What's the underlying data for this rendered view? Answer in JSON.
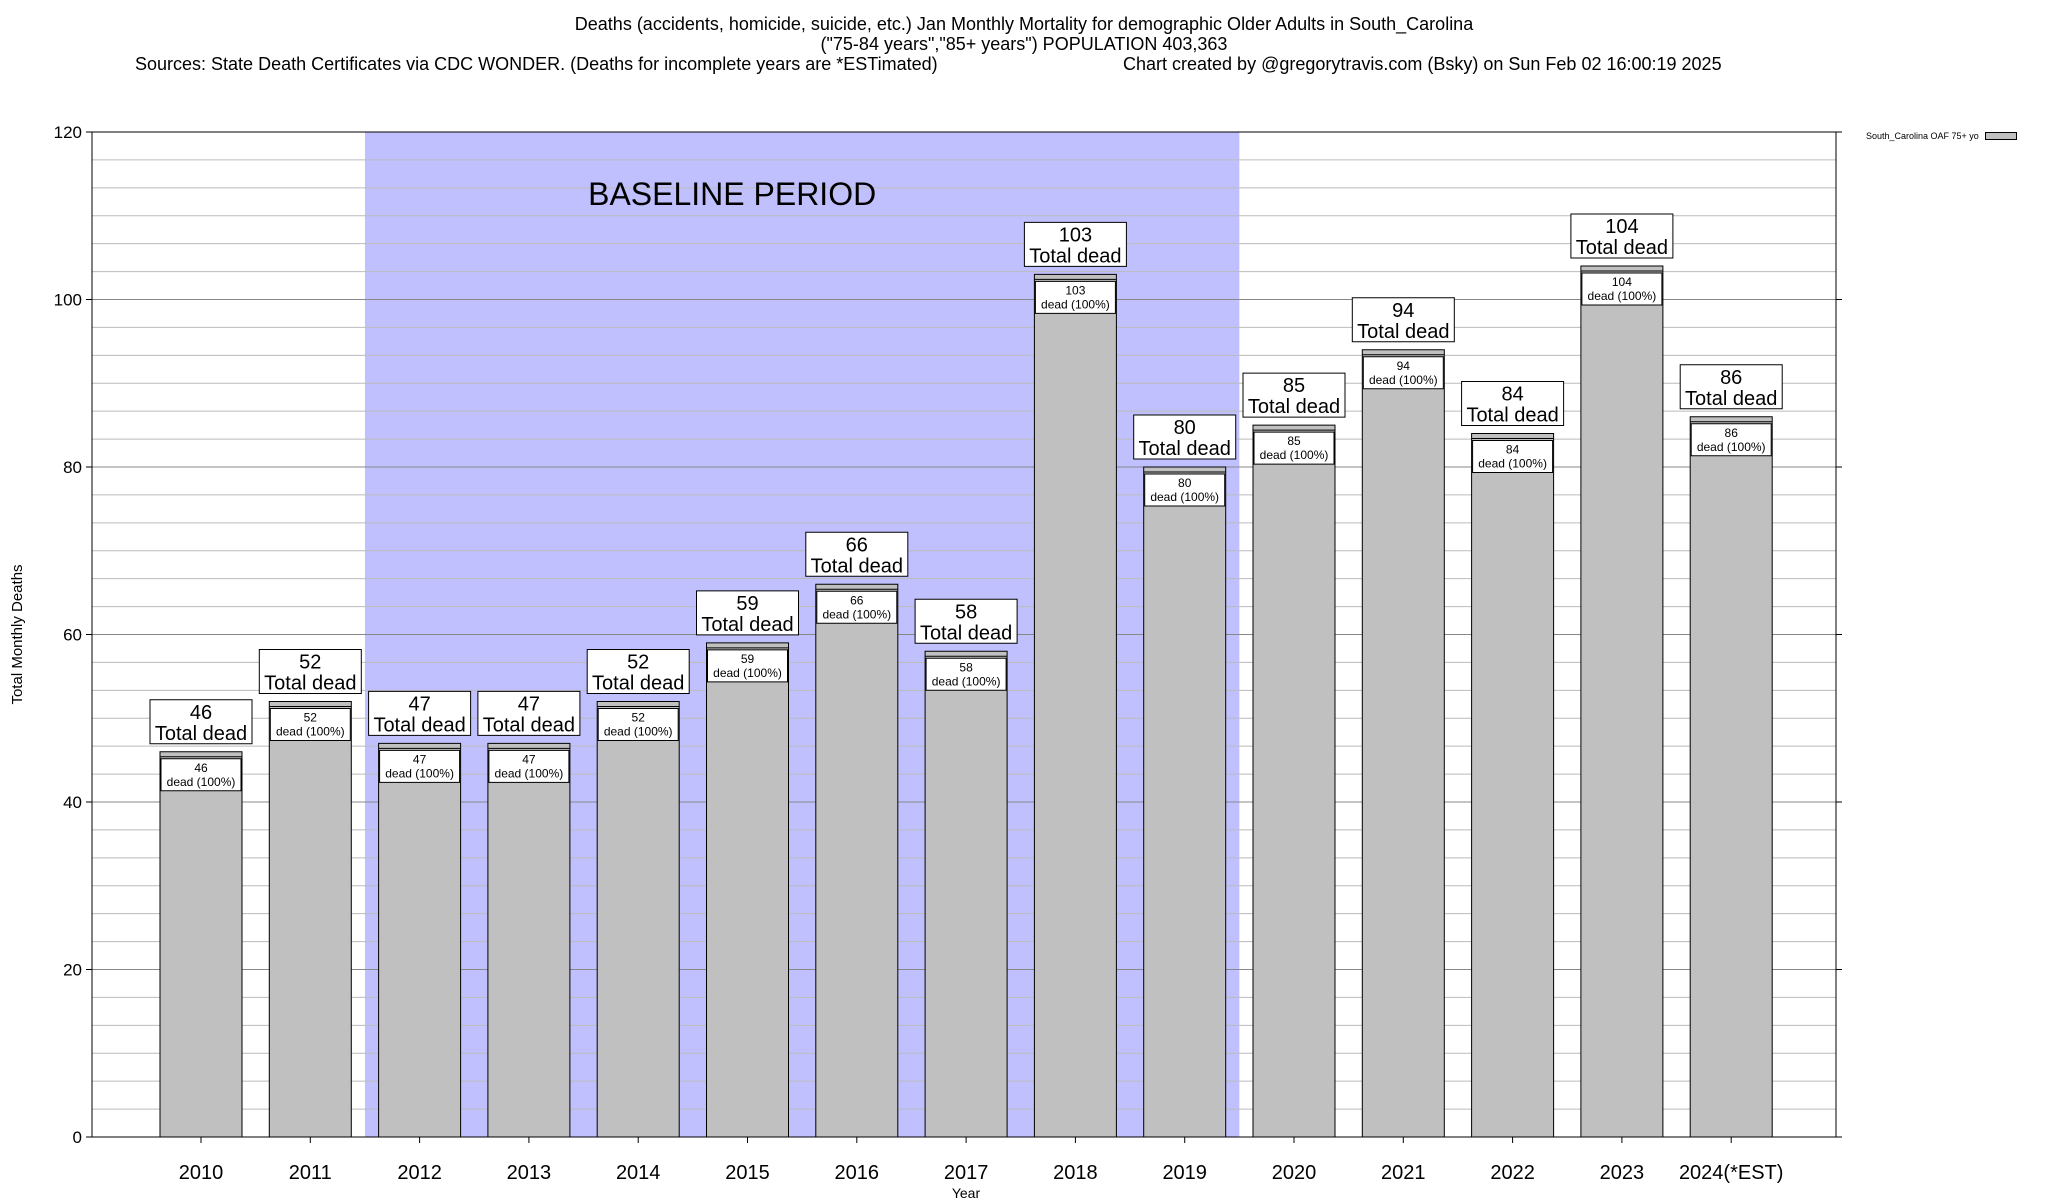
{
  "chart_data": {
    "type": "bar",
    "title": "Deaths (accidents, homicide, suicide, etc.) Jan Monthly Mortality for demographic Older Adults in South_Carolina",
    "subtitle": "(\"75-84 years\",\"85+ years\") POPULATION 403,363",
    "sources": "Sources: State Death Certificates via CDC WONDER. (Deaths for incomplete years are *ESTimated)",
    "credit": "Chart created by @gregorytravis.com (Bsky) on Sun Feb 02 16:00:19 2025",
    "xlabel": "Year",
    "ylabel": "Total Monthly Deaths",
    "ylim": [
      0,
      120
    ],
    "yticks": [
      0,
      20,
      40,
      60,
      80,
      100,
      120
    ],
    "grid": true,
    "categories": [
      "2010",
      "2011",
      "2012",
      "2013",
      "2014",
      "2015",
      "2016",
      "2017",
      "2018",
      "2019",
      "2020",
      "2021",
      "2022",
      "2023",
      "2024(*EST)"
    ],
    "series": [
      {
        "name": "South_Carolina OAF 75+ yo",
        "color": "#c0c0c0",
        "values": [
          46,
          52,
          47,
          47,
          52,
          59,
          66,
          58,
          103,
          80,
          85,
          94,
          84,
          104,
          86
        ]
      }
    ],
    "bar_label_suffix": "Total dead",
    "inner_label_suffix": "dead (100%)",
    "baseline": {
      "label": "BASELINE PERIOD",
      "from": "2012",
      "to": "2019",
      "color": "#c0c0ff"
    },
    "legend": {
      "position": "top-right"
    }
  }
}
